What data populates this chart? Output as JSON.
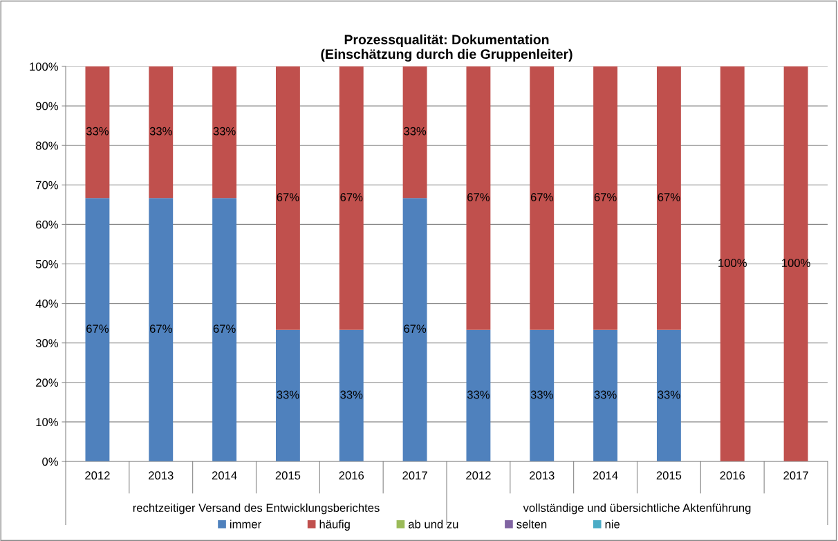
{
  "chart_data": {
    "type": "bar",
    "stacked": true,
    "title": "Prozessqualität: Dokumentation\n(Einschätzung durch die Gruppenleiter)",
    "categories": [
      "2012",
      "2013",
      "2014",
      "2015",
      "2016",
      "2017",
      "2012",
      "2013",
      "2014",
      "2015",
      "2016",
      "2017"
    ],
    "annotations": [
      "rechtzeitiger Versand des Entwicklungsberichtes",
      "vollständige und übersichtliche Aktenführung"
    ],
    "series": [
      {
        "name": "immer",
        "color": "#4f81bd",
        "values": [
          66.7,
          66.7,
          66.7,
          33.3,
          33.3,
          66.7,
          33.3,
          33.3,
          33.3,
          33.3,
          0,
          0
        ],
        "value_labels": [
          "67%",
          "67%",
          "67%",
          "33%",
          "33%",
          "67%",
          "33%",
          "33%",
          "33%",
          "33%",
          null,
          null
        ]
      },
      {
        "name": "häufig",
        "color": "#c0504d",
        "values": [
          33.3,
          33.3,
          33.3,
          66.7,
          66.7,
          33.3,
          66.7,
          66.7,
          66.7,
          66.7,
          100,
          100
        ],
        "value_labels": [
          "33%",
          "33%",
          "33%",
          "67%",
          "67%",
          "33%",
          "67%",
          "67%",
          "67%",
          "67%",
          "100%",
          "100%"
        ]
      },
      {
        "name": "ab und zu",
        "color": "#9bbb59",
        "values": [
          0,
          0,
          0,
          0,
          0,
          0,
          0,
          0,
          0,
          0,
          0,
          0
        ]
      },
      {
        "name": "selten",
        "color": "#8064a2",
        "values": [
          0,
          0,
          0,
          0,
          0,
          0,
          0,
          0,
          0,
          0,
          0,
          0
        ]
      },
      {
        "name": "nie",
        "color": "#4bacc6",
        "values": [
          0,
          0,
          0,
          0,
          0,
          0,
          0,
          0,
          0,
          0,
          0,
          0
        ]
      }
    ],
    "ylim": [
      0,
      100
    ],
    "yticks": [
      {
        "value": 0,
        "label": "0%"
      },
      {
        "value": 10,
        "label": "10%"
      },
      {
        "value": 20,
        "label": "20%"
      },
      {
        "value": 30,
        "label": "30%"
      },
      {
        "value": 40,
        "label": "40%"
      },
      {
        "value": 50,
        "label": "50%"
      },
      {
        "value": 60,
        "label": "60%"
      },
      {
        "value": 70,
        "label": "70%"
      },
      {
        "value": 80,
        "label": "80%"
      },
      {
        "value": 90,
        "label": "90%"
      },
      {
        "value": 100,
        "label": "100%"
      }
    ],
    "grid": "y",
    "legend": "bottom"
  }
}
